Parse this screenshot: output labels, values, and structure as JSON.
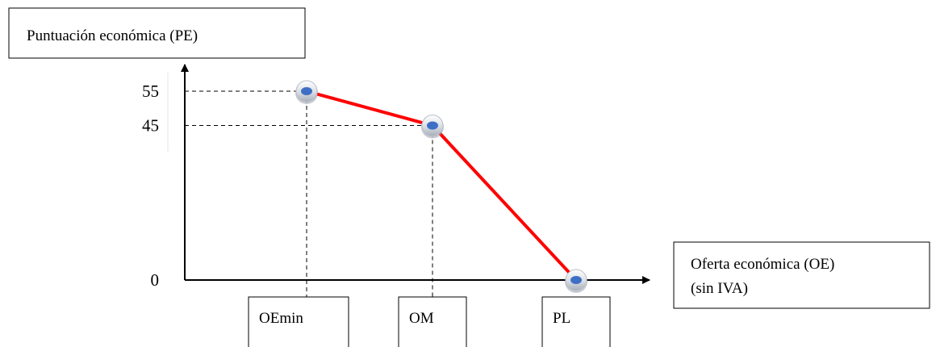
{
  "chart_data": {
    "type": "line",
    "ylabel": "Puntuación económica (PE)",
    "xlabel": [
      "Oferta económica  (OE)",
      "(sin IVA)"
    ],
    "y_ticks": [
      55,
      45,
      0
    ],
    "ylim": [
      0,
      55
    ],
    "categories": [
      "OEmin",
      "OM",
      "PL"
    ],
    "values": [
      55,
      45,
      0
    ],
    "grid": false,
    "line_color": "#ff0000",
    "marker_fill": "#3d6fc4"
  }
}
